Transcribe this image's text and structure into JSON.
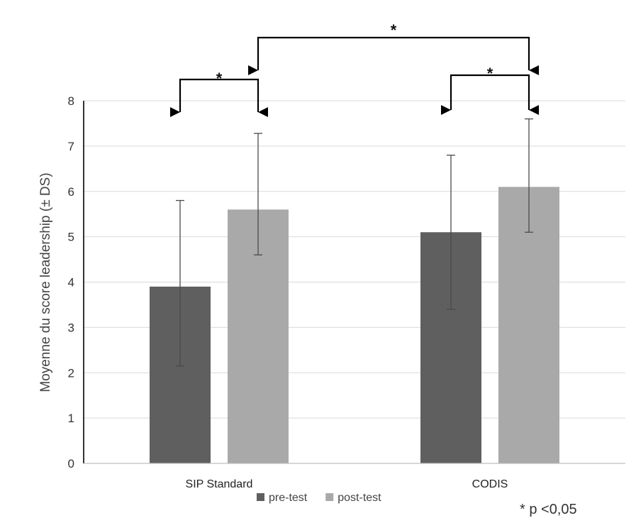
{
  "chart_data": {
    "type": "bar",
    "categories": [
      "SIP Standard",
      "CODIS"
    ],
    "series": [
      {
        "name": "pre-test",
        "values": [
          3.9,
          5.1
        ],
        "err_low": [
          2.15,
          3.4
        ],
        "err_high": [
          5.8,
          6.8
        ],
        "color": "#5f5f5f"
      },
      {
        "name": "post-test",
        "values": [
          5.6,
          6.1
        ],
        "err_low": [
          4.6,
          5.1
        ],
        "err_high": [
          7.28,
          7.6
        ],
        "color": "#a9a9a9"
      }
    ],
    "ylabel": "Moyenne du score leadership (± DS)",
    "ylim": [
      0,
      8
    ],
    "yticks": [
      0,
      1,
      2,
      3,
      4,
      5,
      6,
      7,
      8
    ],
    "grid": true,
    "legend": "bottom",
    "significance": [
      {
        "from": "SIP Standard pre-test",
        "to": "SIP Standard post-test",
        "label": "*"
      },
      {
        "from": "CODIS pre-test",
        "to": "CODIS post-test",
        "label": "*"
      },
      {
        "from": "SIP Standard post-test",
        "to": "CODIS post-test",
        "label": "*"
      }
    ],
    "annotation": "* p <0,05"
  }
}
